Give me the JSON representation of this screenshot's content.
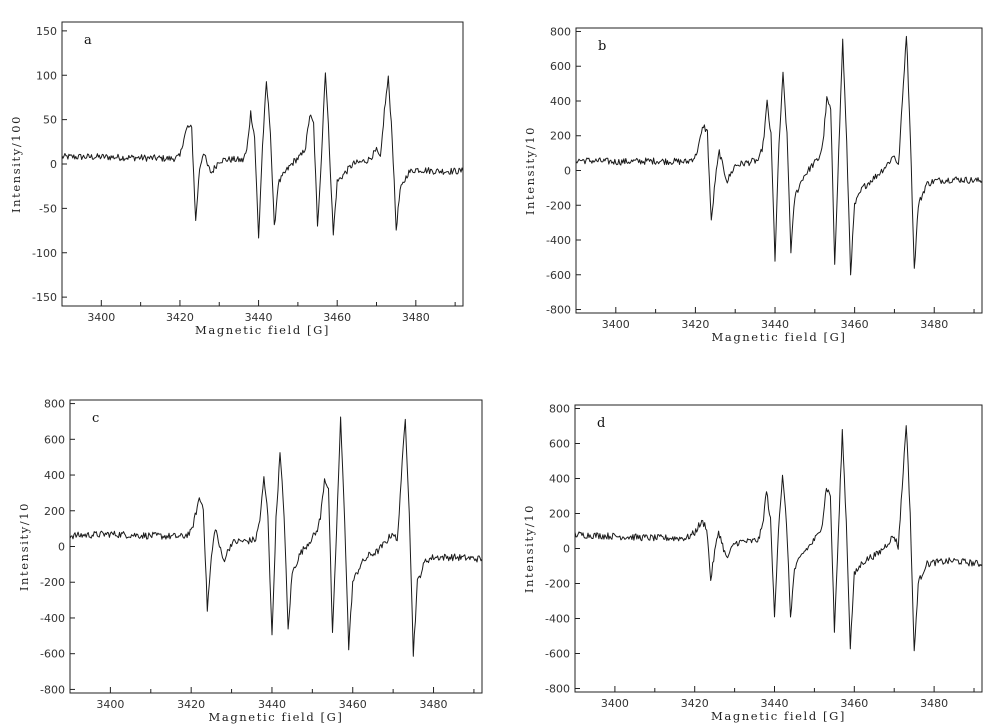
{
  "chart_data": [
    {
      "type": "line",
      "panel_label": "a",
      "xlabel": "Magnetic field [G]",
      "ylabel": "Intensity/100",
      "xlim": [
        3390,
        3492
      ],
      "ylim": [
        -160,
        160
      ],
      "xticks": [
        3400,
        3420,
        3440,
        3460,
        3480
      ],
      "yticks": [
        -150,
        -100,
        -50,
        0,
        50,
        100,
        150
      ],
      "ytick_labels": [
        "-150",
        "-100",
        "-50",
        "0",
        "50",
        "100",
        "150"
      ],
      "grid": false,
      "series": [
        {
          "x": [
            3390,
            3400,
            3410,
            3418,
            3420,
            3421,
            3422,
            3423,
            3424,
            3425,
            3426,
            3427,
            3428,
            3430,
            3432,
            3434,
            3436,
            3437,
            3438,
            3439,
            3440,
            3441,
            3442,
            3443,
            3444,
            3445,
            3447,
            3449,
            3451,
            3452,
            3453,
            3454,
            3455,
            3456,
            3457,
            3458,
            3459,
            3460,
            3462,
            3464,
            3466,
            3468,
            3469,
            3470,
            3471,
            3472,
            3473,
            3474,
            3475,
            3476,
            3478,
            3480,
            3485,
            3492
          ],
          "y": [
            8,
            8,
            7,
            6,
            8,
            30,
            42,
            40,
            -65,
            -5,
            14,
            -2,
            -10,
            4,
            5,
            5,
            4,
            15,
            58,
            30,
            -84,
            20,
            92,
            38,
            -72,
            -22,
            -8,
            3,
            10,
            20,
            55,
            45,
            -72,
            10,
            106,
            20,
            -80,
            -20,
            -10,
            0,
            2,
            5,
            10,
            15,
            5,
            60,
            96,
            30,
            -74,
            -30,
            -10,
            -6,
            -8,
            -8
          ]
        }
      ]
    },
    {
      "type": "line",
      "panel_label": "b",
      "xlabel": "Magnetic field [G]",
      "ylabel": "Intensity/10",
      "xlim": [
        3390,
        3492
      ],
      "ylim": [
        -820,
        820
      ],
      "xticks": [
        3400,
        3420,
        3440,
        3460,
        3480
      ],
      "yticks": [
        -800,
        -600,
        -400,
        -200,
        0,
        200,
        400,
        600,
        800
      ],
      "ytick_labels": [
        "-800",
        "-600",
        "-400",
        "-200",
        "0",
        "200",
        "400",
        "600",
        "800"
      ],
      "grid": false,
      "series": [
        {
          "x": [
            3390,
            3400,
            3410,
            3418,
            3420,
            3421,
            3422,
            3423,
            3424,
            3425,
            3426,
            3427,
            3428,
            3430,
            3432,
            3434,
            3436,
            3437,
            3438,
            3439,
            3440,
            3441,
            3442,
            3443,
            3444,
            3445,
            3447,
            3449,
            3451,
            3452,
            3453,
            3454,
            3455,
            3456,
            3457,
            3458,
            3459,
            3460,
            3462,
            3464,
            3466,
            3468,
            3469,
            3470,
            3471,
            3472,
            3473,
            3474,
            3475,
            3476,
            3478,
            3480,
            3485,
            3492
          ],
          "y": [
            60,
            50,
            55,
            50,
            80,
            160,
            260,
            220,
            -300,
            -50,
            110,
            10,
            -60,
            30,
            40,
            50,
            60,
            150,
            390,
            200,
            -510,
            150,
            550,
            200,
            -460,
            -150,
            -40,
            20,
            70,
            150,
            410,
            350,
            -530,
            100,
            750,
            150,
            -590,
            -200,
            -100,
            -60,
            -20,
            30,
            60,
            90,
            20,
            400,
            790,
            200,
            -570,
            -200,
            -80,
            -60,
            -50,
            -60
          ]
        }
      ]
    },
    {
      "type": "line",
      "panel_label": "c",
      "xlabel": "Magnetic field [G]",
      "ylabel": "Intensity/10",
      "xlim": [
        3390,
        3492
      ],
      "ylim": [
        -820,
        820
      ],
      "xticks": [
        3400,
        3420,
        3440,
        3460,
        3480
      ],
      "yticks": [
        -800,
        -600,
        -400,
        -200,
        0,
        200,
        400,
        600,
        800
      ],
      "ytick_labels": [
        "-800",
        "-600",
        "-400",
        "-200",
        "0",
        "200",
        "400",
        "600",
        "800"
      ],
      "grid": false,
      "series": [
        {
          "x": [
            3390,
            3400,
            3410,
            3418,
            3420,
            3421,
            3422,
            3423,
            3424,
            3425,
            3426,
            3427,
            3428,
            3430,
            3432,
            3434,
            3436,
            3437,
            3438,
            3439,
            3440,
            3441,
            3442,
            3443,
            3444,
            3445,
            3447,
            3449,
            3451,
            3452,
            3453,
            3454,
            3455,
            3456,
            3457,
            3458,
            3459,
            3460,
            3462,
            3464,
            3466,
            3468,
            3469,
            3470,
            3471,
            3472,
            3473,
            3474,
            3475,
            3476,
            3478,
            3480,
            3485,
            3492
          ],
          "y": [
            60,
            70,
            60,
            55,
            80,
            170,
            270,
            220,
            -350,
            -60,
            110,
            0,
            -80,
            20,
            30,
            30,
            40,
            150,
            380,
            180,
            -510,
            150,
            520,
            180,
            -470,
            -150,
            -40,
            20,
            80,
            160,
            380,
            330,
            -500,
            100,
            710,
            150,
            -570,
            -200,
            -100,
            -50,
            -30,
            20,
            50,
            80,
            20,
            380,
            710,
            200,
            -600,
            -200,
            -80,
            -60,
            -60,
            -70
          ]
        }
      ]
    },
    {
      "type": "line",
      "panel_label": "d",
      "xlabel": "Magnetic field [G]",
      "ylabel": "Intensity/10",
      "xlim": [
        3390,
        3492
      ],
      "ylim": [
        -820,
        820
      ],
      "xticks": [
        3400,
        3420,
        3440,
        3460,
        3480
      ],
      "yticks": [
        -800,
        -600,
        -400,
        -200,
        0,
        200,
        400,
        600,
        800
      ],
      "ytick_labels": [
        "-800",
        "-600",
        "-400",
        "-200",
        "0",
        "200",
        "400",
        "600",
        "800"
      ],
      "grid": false,
      "series": [
        {
          "x": [
            3390,
            3400,
            3410,
            3418,
            3420,
            3421,
            3422,
            3423,
            3424,
            3425,
            3426,
            3427,
            3428,
            3430,
            3432,
            3434,
            3436,
            3437,
            3438,
            3439,
            3440,
            3441,
            3442,
            3443,
            3444,
            3445,
            3447,
            3449,
            3451,
            3452,
            3453,
            3454,
            3455,
            3456,
            3457,
            3458,
            3459,
            3460,
            3462,
            3464,
            3466,
            3468,
            3469,
            3470,
            3471,
            3472,
            3473,
            3474,
            3475,
            3476,
            3478,
            3480,
            3485,
            3492
          ],
          "y": [
            80,
            70,
            60,
            60,
            90,
            130,
            150,
            120,
            -180,
            -20,
            100,
            20,
            -60,
            30,
            40,
            40,
            50,
            130,
            330,
            160,
            -390,
            120,
            410,
            150,
            -390,
            -120,
            -30,
            20,
            80,
            150,
            350,
            300,
            -470,
            80,
            670,
            150,
            -560,
            -150,
            -80,
            -50,
            -30,
            20,
            50,
            70,
            10,
            350,
            720,
            200,
            -600,
            -200,
            -90,
            -80,
            -70,
            -90
          ]
        }
      ]
    }
  ]
}
